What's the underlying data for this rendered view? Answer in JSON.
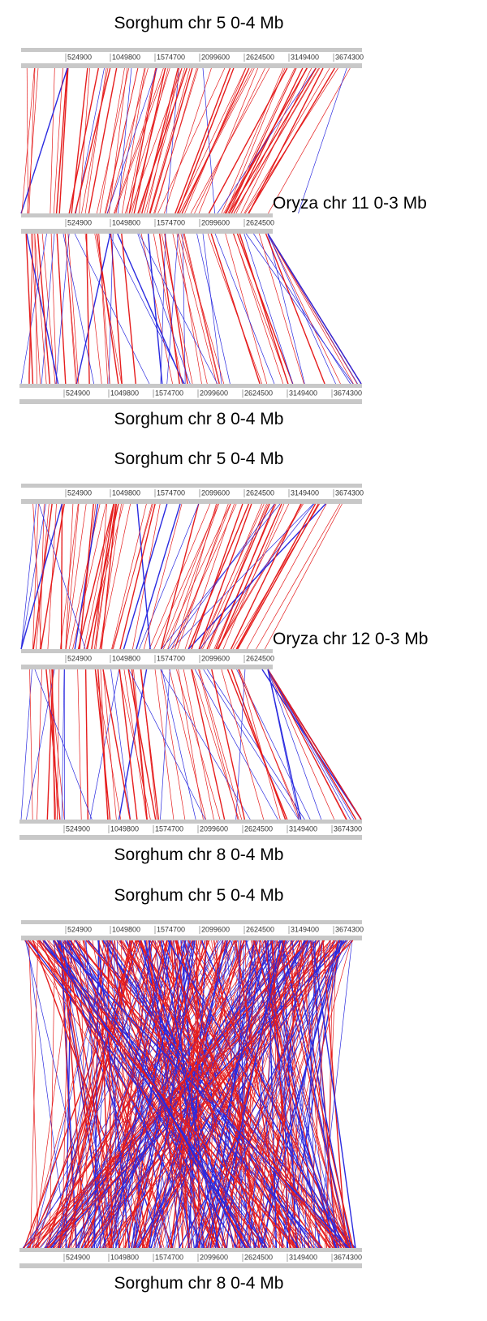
{
  "panels": [
    {
      "top": {
        "label": "Sorghum chr 5  0-4 Mb",
        "ticks": [
          "524900",
          "1049800",
          "1574700",
          "2099600",
          "2624500",
          "3149400",
          "3674300"
        ]
      },
      "middle": {
        "label": "Oryza chr 11  0-3 Mb",
        "ticks": [
          "524900",
          "1049800",
          "1574700",
          "2099600",
          "2624500"
        ]
      },
      "bottom": {
        "label": "Sorghum chr 8  0-4 Mb",
        "ticks": [
          "524900",
          "1049800",
          "1574700",
          "2099600",
          "2624500",
          "3149400",
          "3674300"
        ]
      }
    },
    {
      "top": {
        "label": "Sorghum chr 5  0-4 Mb",
        "ticks": [
          "524900",
          "1049800",
          "1574700",
          "2099600",
          "2624500",
          "3149400",
          "3674300"
        ]
      },
      "middle": {
        "label": "Oryza chr 12  0-3 Mb",
        "ticks": [
          "524900",
          "1049800",
          "1574700",
          "2099600",
          "2624500"
        ]
      },
      "bottom": {
        "label": "Sorghum chr 8  0-4 Mb",
        "ticks": [
          "524900",
          "1049800",
          "1574700",
          "2099600",
          "2624500",
          "3149400",
          "3674300"
        ]
      }
    },
    {
      "top": {
        "label": "Sorghum chr 5  0-4 Mb",
        "ticks": [
          "524900",
          "1049800",
          "1574700",
          "2099600",
          "2624500",
          "3149400",
          "3674300"
        ]
      },
      "bottom": {
        "label": "Sorghum chr 8  0-4 Mb",
        "ticks": [
          "524900",
          "1049800",
          "1574700",
          "2099600",
          "2624500",
          "3149400",
          "3674300"
        ]
      }
    }
  ]
}
